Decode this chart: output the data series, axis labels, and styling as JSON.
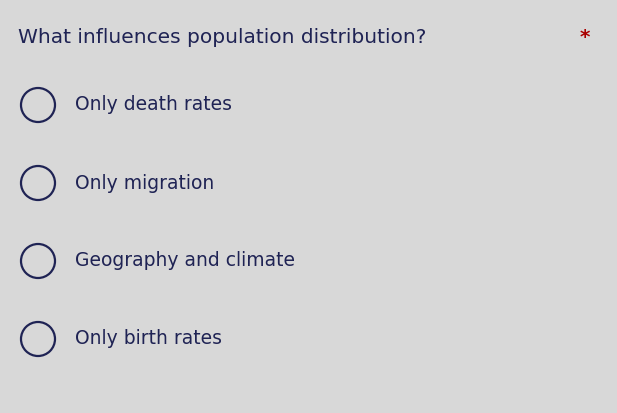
{
  "title": "What influences population distribution? ",
  "title_color": "#1f2354",
  "asterisk": "*",
  "asterisk_color": "#aa0000",
  "options": [
    "Only death rates",
    "Only migration",
    "Geography and climate",
    "Only birth rates"
  ],
  "background_color": "#d8d8d8",
  "title_fontsize": 14.5,
  "option_fontsize": 13.5,
  "circle_color": "#1f2354",
  "circle_linewidth": 1.6,
  "fig_width": 6.17,
  "fig_height": 4.13,
  "dpi": 100
}
